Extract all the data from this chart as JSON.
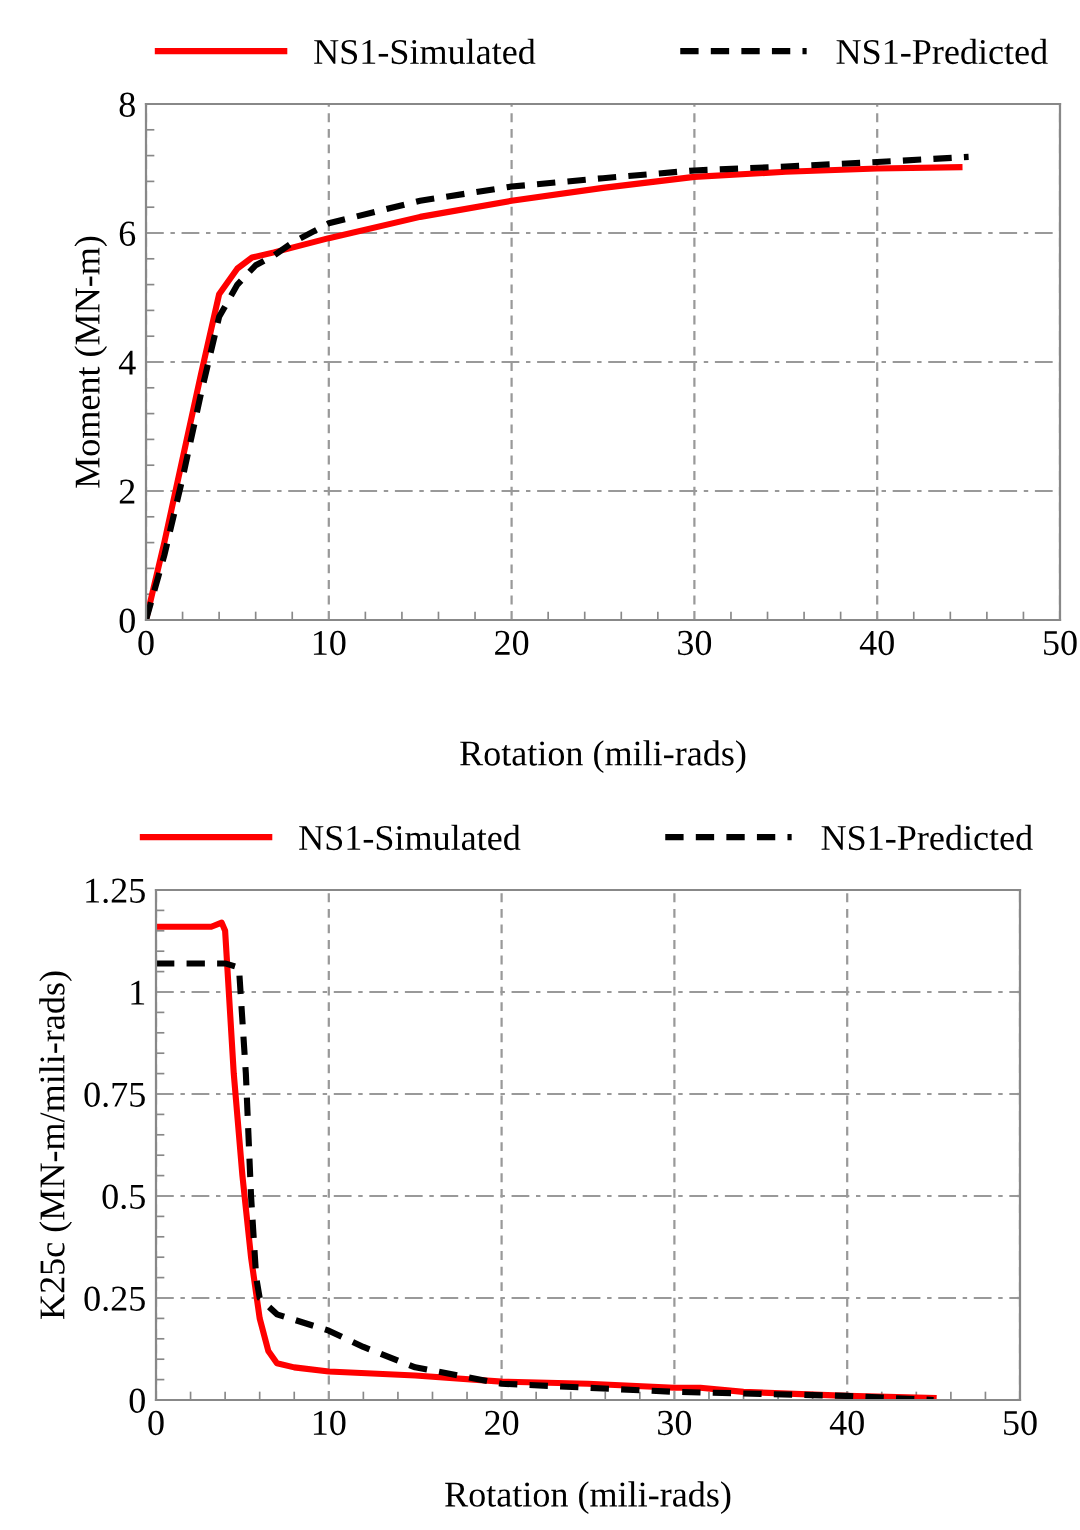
{
  "chart_data": [
    {
      "type": "line",
      "xlabel": "Rotation (mili-rads)",
      "ylabel": "Moment (MN-m)",
      "xlim": [
        0,
        50
      ],
      "ylim": [
        0,
        8
      ],
      "xticks": [
        0,
        10,
        20,
        30,
        40,
        50
      ],
      "yticks": [
        0,
        2,
        4,
        6,
        8
      ],
      "grid": true,
      "legend": "top",
      "series": [
        {
          "name": "NS1-Simulated",
          "color": "#ff0000",
          "line_style": "solid",
          "x": [
            0,
            1,
            2,
            3,
            4,
            5,
            5.8,
            7,
            10,
            15,
            20,
            25,
            30,
            35,
            40,
            44.5
          ],
          "values": [
            0,
            1.2,
            2.5,
            3.8,
            5.05,
            5.45,
            5.62,
            5.7,
            5.92,
            6.25,
            6.5,
            6.7,
            6.87,
            6.95,
            7.0,
            7.02
          ]
        },
        {
          "name": "NS1-Predicted",
          "color": "#000000",
          "line_style": "dashed",
          "x": [
            0,
            1,
            2,
            3,
            4,
            5,
            6,
            7,
            8,
            10,
            15,
            20,
            25,
            30,
            35,
            40,
            45
          ],
          "values": [
            0,
            1.0,
            2.2,
            3.5,
            4.7,
            5.2,
            5.5,
            5.65,
            5.85,
            6.15,
            6.5,
            6.72,
            6.85,
            6.97,
            7.03,
            7.1,
            7.18
          ]
        }
      ]
    },
    {
      "type": "line",
      "xlabel": "Rotation (mili-rads)",
      "ylabel": "K25c (MN-m/mili-rads)",
      "xlim": [
        0,
        50
      ],
      "ylim": [
        0,
        1.25
      ],
      "xticks": [
        0,
        10,
        20,
        30,
        40,
        50
      ],
      "yticks": [
        0,
        0.25,
        0.5,
        0.75,
        1,
        1.25
      ],
      "grid": true,
      "legend": "top",
      "series": [
        {
          "name": "NS1-Simulated",
          "color": "#ff0000",
          "line_style": "solid",
          "x": [
            0,
            3.2,
            3.8,
            4.0,
            4.5,
            5.0,
            5.5,
            6,
            6.5,
            7,
            8,
            10,
            15,
            20,
            25,
            30,
            31.5,
            34,
            40,
            45
          ],
          "values": [
            1.16,
            1.16,
            1.17,
            1.15,
            0.8,
            0.55,
            0.35,
            0.2,
            0.12,
            0.09,
            0.08,
            0.07,
            0.06,
            0.045,
            0.04,
            0.03,
            0.03,
            0.02,
            0.01,
            0.005
          ]
        },
        {
          "name": "NS1-Predicted",
          "color": "#000000",
          "line_style": "dashed",
          "x": [
            0,
            4,
            4.8,
            5.2,
            5.5,
            5.8,
            6,
            7,
            10,
            12,
            15,
            20,
            25,
            30,
            35,
            40,
            45
          ],
          "values": [
            1.07,
            1.07,
            1.06,
            0.8,
            0.5,
            0.3,
            0.25,
            0.21,
            0.17,
            0.13,
            0.08,
            0.04,
            0.03,
            0.02,
            0.015,
            0.01,
            0.0
          ]
        }
      ]
    }
  ]
}
